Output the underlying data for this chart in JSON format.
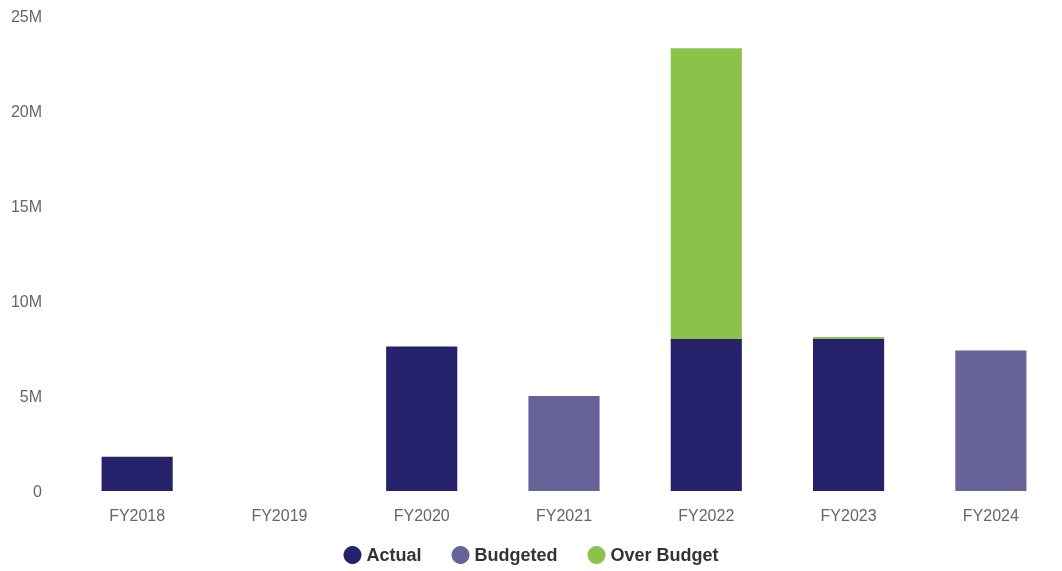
{
  "chart_data": {
    "type": "bar",
    "stacked": true,
    "categories": [
      "FY2018",
      "FY2019",
      "FY2020",
      "FY2021",
      "FY2022",
      "FY2023",
      "FY2024"
    ],
    "series": [
      {
        "name": "Actual",
        "color": "#25216b",
        "values": [
          1.8,
          0,
          7.6,
          0,
          8.0,
          8.0,
          0
        ]
      },
      {
        "name": "Budgeted",
        "color": "#676398",
        "values": [
          0,
          0,
          0,
          5.0,
          0,
          0,
          7.4
        ]
      },
      {
        "name": "Over Budget",
        "color": "#8bc34a",
        "values": [
          0,
          0,
          0,
          0,
          15.3,
          0.1,
          0
        ]
      }
    ],
    "ylim": [
      0,
      25
    ],
    "yticks": [
      {
        "value": 0,
        "label": "0"
      },
      {
        "value": 5,
        "label": "5M"
      },
      {
        "value": 10,
        "label": "10M"
      },
      {
        "value": 15,
        "label": "15M"
      },
      {
        "value": 20,
        "label": "20M"
      },
      {
        "value": 25,
        "label": "25M"
      }
    ],
    "grid": false,
    "legend": "bottom"
  }
}
